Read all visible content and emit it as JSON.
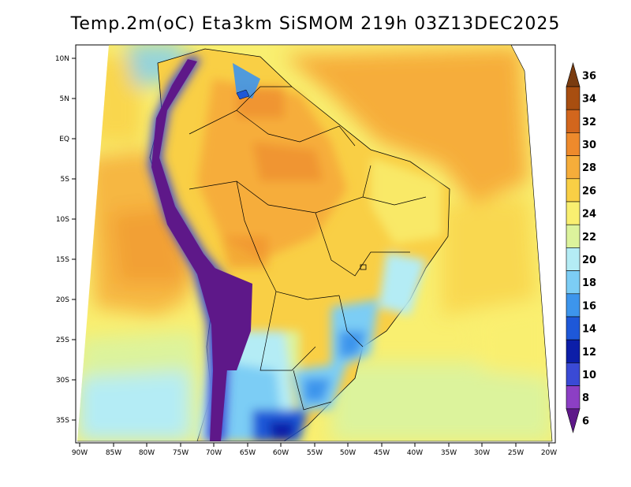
{
  "title": "Temp.2m(oC) Eta3km SiSMOM 219h 03Z13DEC2025",
  "axes": {
    "lat_ticks": [
      "10N",
      "5N",
      "EQ",
      "5S",
      "10S",
      "15S",
      "20S",
      "25S",
      "30S",
      "35S"
    ],
    "lon_ticks": [
      "90W",
      "85W",
      "80W",
      "75W",
      "70W",
      "65W",
      "60W",
      "55W",
      "50W",
      "45W",
      "40W",
      "35W",
      "30W",
      "25W",
      "20W"
    ]
  },
  "colorbar": {
    "labels": [
      "36",
      "34",
      "32",
      "30",
      "28",
      "26",
      "24",
      "22",
      "20",
      "18",
      "16",
      "14",
      "12",
      "10",
      "8",
      "6"
    ],
    "colors": [
      "#7a3c10",
      "#a84e10",
      "#d2661d",
      "#ee8a2c",
      "#f6ad3a",
      "#f9cf45",
      "#f9ef70",
      "#dcf39c",
      "#b4ecf5",
      "#7ccdf5",
      "#3d95ec",
      "#1e58d8",
      "#0c1ea8",
      "#3a4ad5",
      "#8c3fc4",
      "#5e1889"
    ]
  }
}
